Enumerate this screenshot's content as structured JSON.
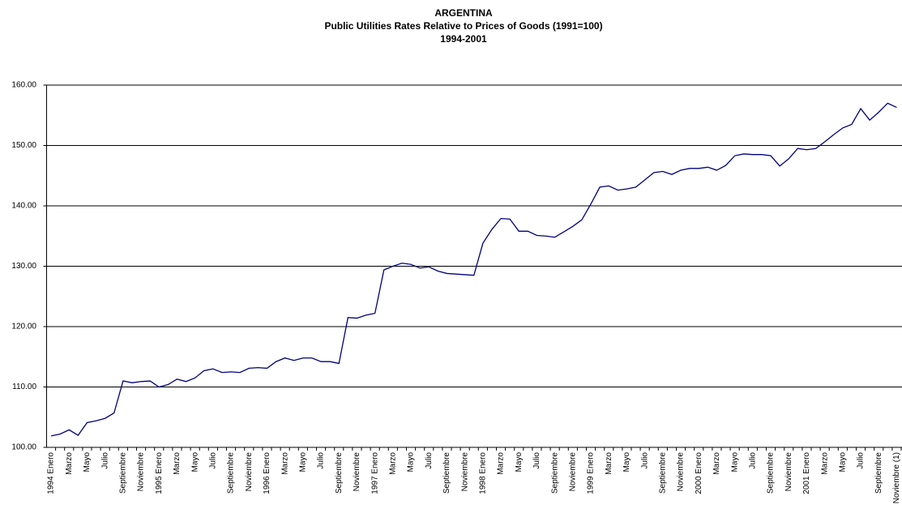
{
  "chart_data": {
    "type": "line",
    "title": "ARGENTINA",
    "subtitle": "Public Utilities Rates Relative to Prices of Goods (1991=100)",
    "period": "1994-2001",
    "categories": [
      "1994 Enero",
      null,
      "Marzo",
      null,
      "Mayo",
      null,
      "Julio",
      null,
      "Septiembre",
      null,
      "Noviembre",
      null,
      "1995 Enero",
      null,
      "Marzo",
      null,
      "Mayo",
      null,
      "Julio",
      null,
      "Septiembre",
      null,
      "Noviembre",
      null,
      "1996 Enero",
      null,
      "Marzo",
      null,
      "Mayo",
      null,
      "Julio",
      null,
      "Septiembre",
      null,
      "Noviembre",
      null,
      "1997 Enero",
      null,
      "Marzo",
      null,
      "Mayo",
      null,
      "Julio",
      null,
      "Septiembre",
      null,
      "Noviembre",
      null,
      "1998 Enero",
      null,
      "Marzo",
      null,
      "Mayo",
      null,
      "Julio",
      null,
      "Septiembre",
      null,
      "Noviembre",
      null,
      "1999 Enero",
      null,
      "Marzo",
      null,
      "Mayo",
      null,
      "Julio",
      null,
      "Septiembre",
      null,
      "Noviembre",
      null,
      "2000 Enero",
      null,
      "Marzo",
      null,
      "Mayo",
      null,
      "Julio",
      null,
      "Septiembre",
      null,
      "Noviembre",
      null,
      "2001 Enero",
      null,
      "Marzo",
      null,
      "Mayo",
      null,
      "Julio",
      null,
      "Septiembre",
      null,
      "Noviembre (1)"
    ],
    "values": [
      101.9,
      102.2,
      102.9,
      102.0,
      104.1,
      104.4,
      104.8,
      105.7,
      111.0,
      110.7,
      110.9,
      111.0,
      110.0,
      110.4,
      111.3,
      110.9,
      111.5,
      112.7,
      113.0,
      112.4,
      112.5,
      112.4,
      113.1,
      113.2,
      113.1,
      114.2,
      114.8,
      114.4,
      114.8,
      114.8,
      114.2,
      114.2,
      113.9,
      121.5,
      121.4,
      121.9,
      122.2,
      129.4,
      130.0,
      130.5,
      130.3,
      129.7,
      129.9,
      129.2,
      128.8,
      128.7,
      128.6,
      128.5,
      133.8,
      136.1,
      137.9,
      137.8,
      135.8,
      135.8,
      135.1,
      135.0,
      134.8,
      135.7,
      136.6,
      137.7,
      140.3,
      143.1,
      143.3,
      142.6,
      142.8,
      143.1,
      144.3,
      145.5,
      145.7,
      145.2,
      145.9,
      146.2,
      146.2,
      146.4,
      145.9,
      146.7,
      148.3,
      148.6,
      148.5,
      148.5,
      148.3,
      146.6,
      147.8,
      149.5,
      149.3,
      149.5,
      150.6,
      151.8,
      152.9,
      153.5,
      156.1,
      154.2,
      155.5,
      157.0,
      156.3
    ],
    "color": "#000080",
    "ylim": [
      100,
      160
    ],
    "yticks": [
      {
        "value": 100,
        "label": "100.00"
      },
      {
        "value": 110,
        "label": "110.00"
      },
      {
        "value": 120,
        "label": "120.00"
      },
      {
        "value": 130,
        "label": "130.00"
      },
      {
        "value": 140,
        "label": "140.00"
      },
      {
        "value": 150,
        "label": "150.00"
      },
      {
        "value": 160,
        "label": "160.00"
      }
    ],
    "grid": true
  }
}
